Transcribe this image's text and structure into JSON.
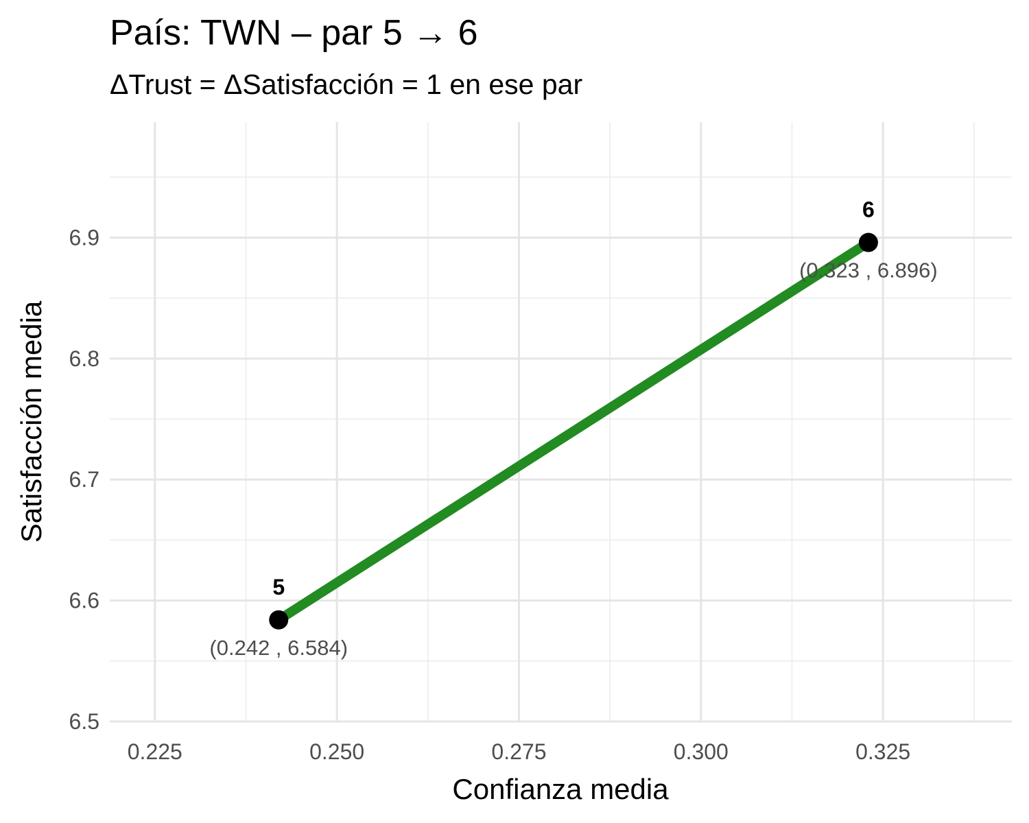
{
  "chart_data": {
    "type": "line",
    "title": "País: TWN – par 5 → 6",
    "subtitle": "ΔTrust = ΔSatisfacción = 1 en ese par",
    "xlabel": "Confianza media",
    "ylabel": "Satisfacción media",
    "xlim": [
      0.2188,
      0.3427
    ],
    "ylim": [
      6.5,
      6.9955
    ],
    "x_ticks": [
      "0.225",
      "0.250",
      "0.275",
      "0.300",
      "0.325"
    ],
    "x_tick_values": [
      0.225,
      0.25,
      0.275,
      0.3,
      0.325
    ],
    "y_ticks": [
      "6.5",
      "6.6",
      "6.7",
      "6.8",
      "6.9"
    ],
    "y_tick_values": [
      6.5,
      6.6,
      6.7,
      6.8,
      6.9
    ],
    "grid": true,
    "line_color": "#228B22",
    "point_color": "#000000",
    "points": [
      {
        "label": "5",
        "x": 0.242,
        "y": 6.584,
        "coord_text": "(0.242 , 6.584)"
      },
      {
        "label": "6",
        "x": 0.323,
        "y": 6.896,
        "coord_text": "(0.323 , 6.896)"
      }
    ]
  }
}
